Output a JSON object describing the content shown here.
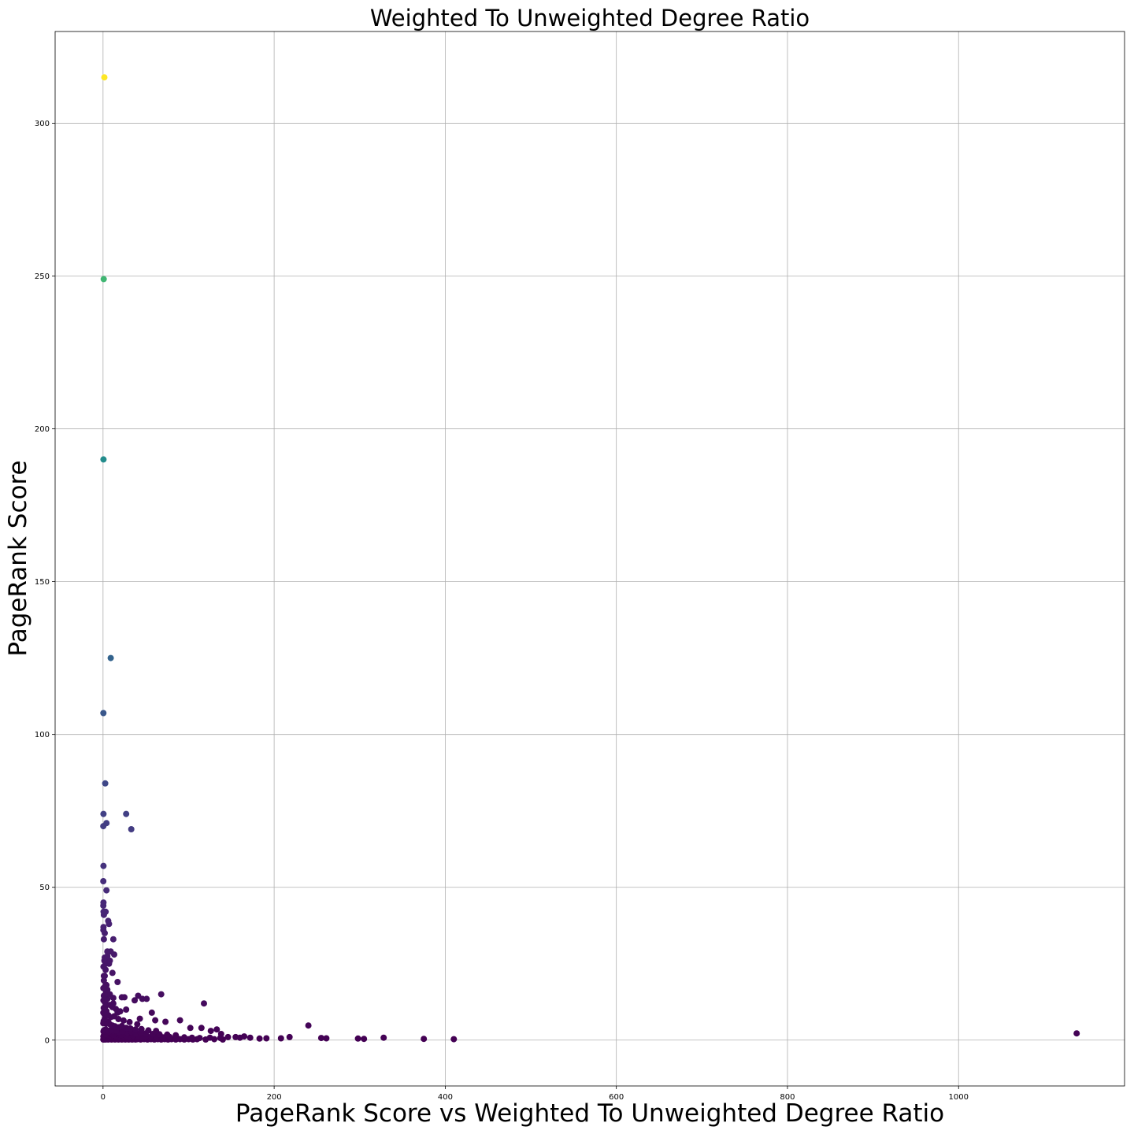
{
  "chart_data": {
    "type": "scatter",
    "title": "Weighted To Unweighted Degree Ratio",
    "xlabel": "PageRank Score vs Weighted To Unweighted Degree Ratio",
    "ylabel": "PageRank Score",
    "xlim": [
      -56,
      1194
    ],
    "ylim": [
      -15,
      330
    ],
    "xticks": [
      0,
      200,
      400,
      600,
      800,
      1000
    ],
    "yticks": [
      0,
      50,
      100,
      150,
      200,
      250,
      300
    ],
    "grid": true,
    "legend": "none",
    "colormap": "viridis",
    "color_range": [
      0,
      315
    ],
    "series": [
      {
        "x": [
          1.5,
          0.8,
          0.5,
          9,
          0.4,
          2.5,
          0.5,
          4,
          0.3,
          27,
          33,
          0.5,
          0.3,
          4,
          0.5,
          0.3,
          0.6,
          3,
          1,
          6,
          7,
          0.5,
          0.4,
          2,
          1,
          12,
          13,
          17,
          9,
          5,
          2,
          8,
          3,
          11,
          1,
          4,
          22,
          25,
          41,
          46,
          37,
          51,
          57,
          68,
          118,
          27,
          12,
          17,
          3,
          43,
          61,
          73,
          90,
          102,
          115,
          126,
          133,
          138,
          146,
          155,
          160,
          165,
          172,
          183,
          191,
          208,
          218,
          240,
          255,
          261,
          298,
          305,
          328,
          375,
          410,
          1138,
          0.3,
          0.5,
          1,
          2,
          3,
          4,
          5,
          6,
          8,
          10,
          12,
          14,
          16,
          18,
          20,
          22,
          24,
          26,
          28,
          30,
          32,
          34,
          36,
          38,
          40,
          44,
          48,
          52,
          56,
          60,
          64,
          68,
          72,
          76,
          80,
          85,
          90,
          95,
          100,
          105,
          110,
          120,
          130,
          140,
          0.4,
          1,
          2,
          3,
          4,
          5,
          6,
          8,
          10,
          12,
          15,
          18,
          21,
          24,
          27,
          30,
          35,
          40,
          45,
          50,
          55,
          62,
          70,
          78,
          86,
          95,
          104,
          113,
          125,
          137,
          0.5,
          1,
          2,
          3,
          5,
          7,
          9,
          12,
          15,
          19,
          23,
          28,
          33,
          38,
          44,
          50,
          58,
          66,
          75,
          85,
          0.3,
          0.7,
          1.2,
          2,
          3,
          4,
          6,
          8,
          11,
          14,
          18,
          22,
          27,
          32,
          38,
          45,
          53,
          62,
          0.3,
          0.8,
          1.5,
          2.5,
          4,
          6,
          9,
          13,
          18,
          24,
          31,
          40,
          0.5,
          1,
          2,
          3.5,
          5,
          8,
          11,
          15,
          20,
          0.4,
          1,
          2,
          3,
          5,
          8,
          12,
          0.5,
          1.5,
          3,
          5,
          7
        ],
        "y": [
          315,
          249,
          190,
          125,
          107,
          84,
          74,
          71,
          70,
          74,
          69,
          57,
          52,
          49,
          45,
          44,
          42,
          42,
          41,
          39,
          38,
          37,
          36,
          35,
          33,
          33,
          28,
          19,
          29,
          29,
          27,
          26,
          25,
          22,
          21,
          18,
          14,
          14,
          14.5,
          13.5,
          13,
          13.5,
          9,
          15,
          12,
          10,
          12,
          9,
          12,
          7,
          6.5,
          6,
          6.5,
          4,
          4,
          3,
          3.5,
          2,
          1,
          1,
          0.8,
          1.2,
          0.8,
          0.5,
          0.6,
          0.6,
          1,
          4.8,
          0.7,
          0.6,
          0.5,
          0.4,
          0.8,
          0.4,
          0.3,
          2.2,
          0.2,
          0.3,
          0.2,
          0.3,
          0.2,
          0.4,
          0.3,
          0.2,
          0.3,
          0.2,
          0.3,
          0.2,
          0.3,
          0.2,
          0.3,
          0.2,
          0.3,
          0.2,
          0.3,
          0.2,
          0.3,
          0.2,
          0.3,
          0.2,
          0.3,
          0.2,
          0.3,
          0.2,
          0.3,
          0.2,
          0.3,
          0.2,
          0.3,
          0.2,
          0.3,
          0.2,
          0.3,
          0.2,
          0.3,
          0.2,
          0.3,
          0.2,
          0.3,
          0.2,
          1.2,
          1.5,
          1.3,
          1.8,
          1.4,
          1.6,
          1.2,
          1.5,
          1.3,
          1.7,
          1.4,
          1.2,
          1.6,
          1.3,
          1.5,
          1.2,
          1.4,
          1.3,
          1.1,
          1.2,
          1.0,
          1.1,
          0.9,
          1.0,
          0.8,
          0.9,
          0.8,
          0.7,
          0.8,
          0.7,
          2.8,
          3.2,
          2.9,
          3.5,
          3.1,
          2.7,
          3.3,
          2.9,
          3.1,
          2.6,
          2.8,
          2.5,
          2.7,
          2.3,
          2.5,
          2.2,
          2.0,
          1.9,
          1.8,
          1.6,
          5.5,
          6.2,
          5.8,
          7,
          6.1,
          5.4,
          5.9,
          5.2,
          4.8,
          4.5,
          4.2,
          4.6,
          4.0,
          3.8,
          3.5,
          3.6,
          3.2,
          3.0,
          9,
          10.5,
          8.5,
          11,
          9.5,
          8.2,
          7.5,
          7.8,
          6.9,
          6.4,
          5.9,
          5.2,
          13,
          14.5,
          12.5,
          15.5,
          13.5,
          11.5,
          10.8,
          10.2,
          9.4,
          17,
          19.5,
          21,
          18,
          16.5,
          15,
          13.8,
          24,
          26,
          23,
          27.5,
          25
        ]
      }
    ]
  }
}
